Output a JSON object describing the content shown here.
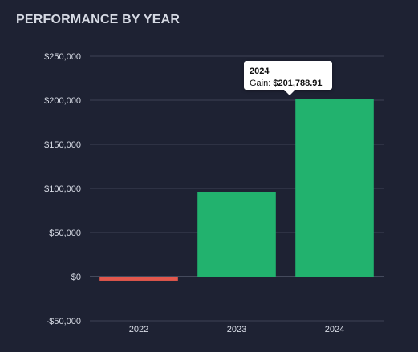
{
  "title": "PERFORMANCE BY YEAR",
  "colors": {
    "background": "#1e2233",
    "positive": "#22b26e",
    "negative": "#e2574c",
    "grid": "#3d4356",
    "zero_line": "#6b7186",
    "tick_text": "#d6dae4"
  },
  "tooltip": {
    "title": "2024",
    "label": "Gain:",
    "value": "$201,788.91"
  },
  "chart_data": {
    "type": "bar",
    "title": "PERFORMANCE BY YEAR",
    "categories": [
      "2022",
      "2023",
      "2024"
    ],
    "values": [
      -4500,
      96000,
      201788.91
    ],
    "ylim": [
      -50000,
      250000
    ],
    "yticks": [
      250000,
      200000,
      150000,
      100000,
      50000,
      0,
      -50000
    ],
    "ytick_labels": [
      "$250,000",
      "$200,000",
      "$150,000",
      "$100,000",
      "$50,000",
      "$0",
      "-$50,000"
    ],
    "xlabel": "",
    "ylabel": "",
    "grid": true,
    "legend": "none"
  }
}
